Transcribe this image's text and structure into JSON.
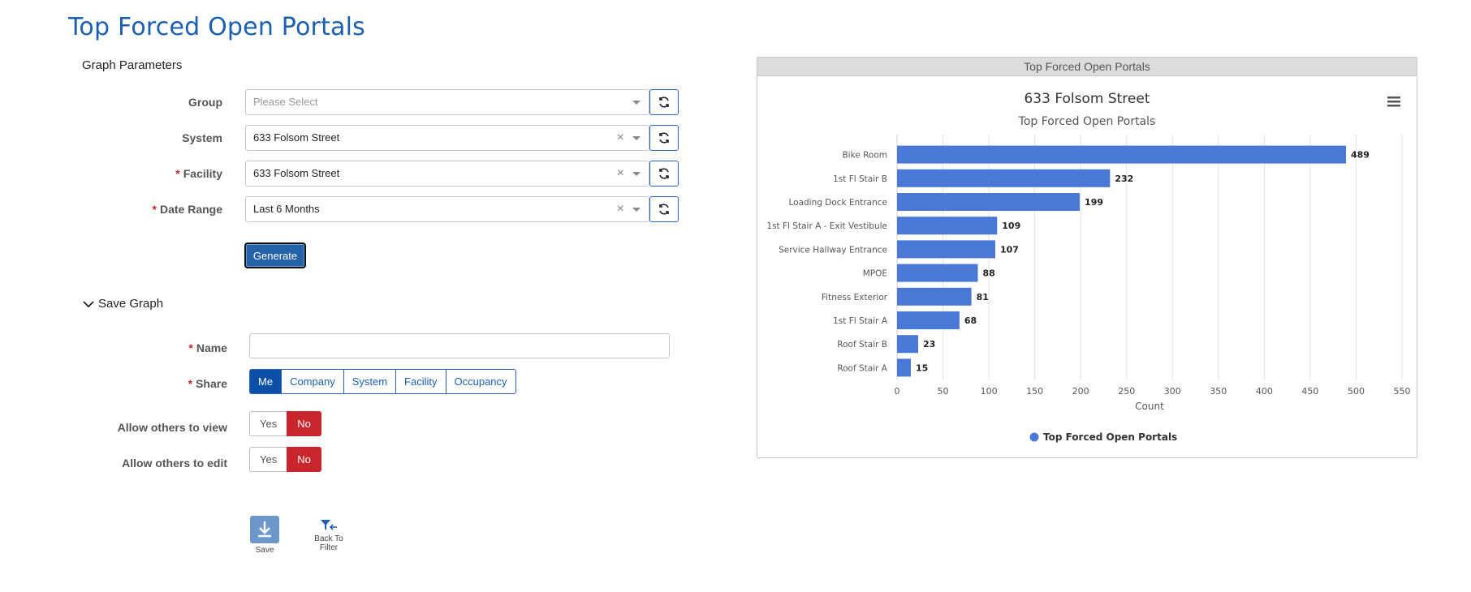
{
  "page": {
    "title": "Top Forced Open Portals"
  },
  "graph_params": {
    "section_label": "Graph Parameters",
    "group": {
      "label": "Group",
      "placeholder": "Please Select"
    },
    "system": {
      "label": "System",
      "value": "633 Folsom Street"
    },
    "facility": {
      "label": "Facility",
      "value": "633 Folsom Street"
    },
    "date_range": {
      "label": "Date Range",
      "value": "Last 6 Months"
    },
    "required_mark": "*",
    "clear_glyph": "×",
    "generate_label": "Generate"
  },
  "save_graph": {
    "toggle_label": "Save Graph",
    "name_label": "Name",
    "share_label": "Share",
    "share_options": [
      "Me",
      "Company",
      "System",
      "Facility",
      "Occupancy"
    ],
    "share_selected": "Me",
    "allow_view_label": "Allow others to view",
    "allow_edit_label": "Allow others to edit",
    "yes_label": "Yes",
    "no_label": "No",
    "allow_view_value": "No",
    "allow_edit_value": "No"
  },
  "actions": {
    "save_label": "Save",
    "back_label_line1": "Back To",
    "back_label_line2": "Filter"
  },
  "chart_panel": {
    "header": "Top Forced Open Portals"
  },
  "colors": {
    "bar": "#4a78d6",
    "accent": "#1b5fb0",
    "no_active": "#c9252c"
  },
  "chart_data": {
    "type": "bar",
    "orientation": "horizontal",
    "title": "633 Folsom Street",
    "subtitle": "Top Forced Open Portals",
    "xlabel": "Count",
    "categories": [
      "Bike Room",
      "1st Fl Stair B",
      "Loading Dock Entrance",
      "1st Fl Stair A - Exit Vestibule",
      "Service Hallway Entrance",
      "MPOE",
      "Fitness Exterior",
      "1st Fl Stair A",
      "Roof Stair B",
      "Roof Stair A"
    ],
    "series": [
      {
        "name": "Top Forced Open Portals",
        "values": [
          489,
          232,
          199,
          109,
          107,
          88,
          81,
          68,
          23,
          15
        ]
      }
    ],
    "xlim": [
      0,
      550
    ],
    "xticks": [
      0,
      50,
      100,
      150,
      200,
      250,
      300,
      350,
      400,
      450,
      500,
      550
    ],
    "grid": true,
    "legend": "bottom"
  }
}
